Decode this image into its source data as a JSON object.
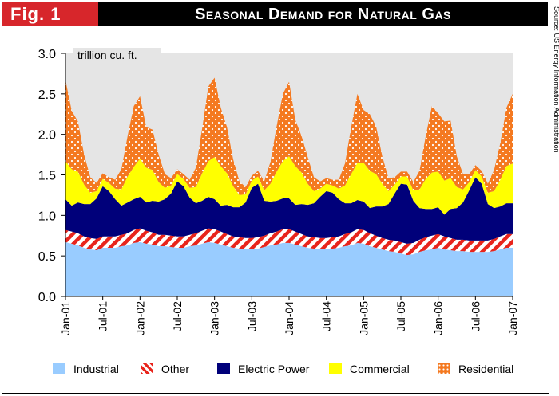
{
  "header": {
    "fig_label": "Fig. 1",
    "title": "Seasonal Demand for Natural Gas",
    "source": "Source: US Energy Information Administration"
  },
  "chart_data": {
    "type": "area",
    "stacked": true,
    "ylabel": "trillion cu. ft.",
    "ylim": [
      0,
      3.0
    ],
    "yticks": [
      "0.0",
      "0.5",
      "1.0",
      "1.5",
      "2.0",
      "2.5",
      "3.0"
    ],
    "xticks": [
      "Jan-01",
      "Jul-01",
      "Jan-02",
      "Jul-02",
      "Jan-03",
      "Jul-03",
      "Jan-04",
      "Jul-04",
      "Jan-05",
      "Jul-05",
      "Jan-06",
      "Jul-06",
      "Jan-07"
    ],
    "grid": false,
    "legend_position": "bottom",
    "series": [
      {
        "name": "Industrial",
        "color": "#99ccff",
        "pattern": "solid",
        "values": [
          0.67,
          0.65,
          0.63,
          0.6,
          0.58,
          0.57,
          0.6,
          0.6,
          0.6,
          0.62,
          0.63,
          0.66,
          0.67,
          0.65,
          0.64,
          0.62,
          0.62,
          0.61,
          0.6,
          0.6,
          0.62,
          0.63,
          0.65,
          0.67,
          0.66,
          0.64,
          0.62,
          0.6,
          0.59,
          0.58,
          0.58,
          0.59,
          0.61,
          0.63,
          0.64,
          0.66,
          0.66,
          0.64,
          0.62,
          0.6,
          0.59,
          0.58,
          0.58,
          0.59,
          0.6,
          0.62,
          0.63,
          0.66,
          0.65,
          0.62,
          0.6,
          0.58,
          0.56,
          0.55,
          0.53,
          0.51,
          0.52,
          0.55,
          0.57,
          0.58,
          0.6,
          0.58,
          0.57,
          0.56,
          0.56,
          0.55,
          0.55,
          0.55,
          0.55,
          0.56,
          0.58,
          0.6,
          0.6
        ]
      },
      {
        "name": "Other",
        "color": "#e8241c",
        "pattern": "stripes",
        "values": [
          0.15,
          0.15,
          0.15,
          0.14,
          0.14,
          0.14,
          0.14,
          0.14,
          0.14,
          0.14,
          0.15,
          0.16,
          0.17,
          0.16,
          0.15,
          0.14,
          0.14,
          0.14,
          0.14,
          0.14,
          0.14,
          0.15,
          0.16,
          0.17,
          0.17,
          0.16,
          0.15,
          0.14,
          0.14,
          0.14,
          0.14,
          0.14,
          0.14,
          0.15,
          0.16,
          0.17,
          0.17,
          0.16,
          0.15,
          0.14,
          0.14,
          0.14,
          0.14,
          0.14,
          0.14,
          0.15,
          0.16,
          0.17,
          0.17,
          0.16,
          0.15,
          0.14,
          0.14,
          0.14,
          0.14,
          0.14,
          0.14,
          0.15,
          0.16,
          0.17,
          0.17,
          0.16,
          0.15,
          0.14,
          0.14,
          0.14,
          0.14,
          0.14,
          0.14,
          0.15,
          0.16,
          0.17,
          0.17
        ]
      },
      {
        "name": "Electric Power",
        "color": "#00007a",
        "pattern": "solid",
        "values": [
          0.38,
          0.32,
          0.38,
          0.4,
          0.42,
          0.5,
          0.62,
          0.56,
          0.46,
          0.36,
          0.38,
          0.38,
          0.39,
          0.35,
          0.39,
          0.41,
          0.44,
          0.52,
          0.68,
          0.62,
          0.46,
          0.37,
          0.37,
          0.39,
          0.37,
          0.32,
          0.36,
          0.36,
          0.37,
          0.44,
          0.62,
          0.66,
          0.43,
          0.39,
          0.38,
          0.38,
          0.38,
          0.33,
          0.37,
          0.39,
          0.42,
          0.51,
          0.58,
          0.55,
          0.46,
          0.38,
          0.36,
          0.36,
          0.35,
          0.31,
          0.36,
          0.39,
          0.44,
          0.58,
          0.72,
          0.73,
          0.52,
          0.39,
          0.35,
          0.33,
          0.33,
          0.27,
          0.36,
          0.39,
          0.46,
          0.62,
          0.78,
          0.7,
          0.45,
          0.38,
          0.37,
          0.38,
          0.38
        ]
      },
      {
        "name": "Commercial",
        "color": "#ffff00",
        "pattern": "solid",
        "values": [
          0.47,
          0.45,
          0.38,
          0.24,
          0.14,
          0.09,
          0.09,
          0.1,
          0.13,
          0.2,
          0.32,
          0.4,
          0.47,
          0.43,
          0.38,
          0.24,
          0.14,
          0.1,
          0.09,
          0.09,
          0.12,
          0.2,
          0.34,
          0.44,
          0.52,
          0.49,
          0.39,
          0.26,
          0.15,
          0.1,
          0.09,
          0.09,
          0.13,
          0.22,
          0.36,
          0.46,
          0.52,
          0.48,
          0.39,
          0.26,
          0.15,
          0.1,
          0.09,
          0.09,
          0.13,
          0.22,
          0.36,
          0.46,
          0.48,
          0.46,
          0.4,
          0.28,
          0.16,
          0.11,
          0.09,
          0.1,
          0.13,
          0.23,
          0.37,
          0.45,
          0.44,
          0.42,
          0.38,
          0.26,
          0.16,
          0.1,
          0.09,
          0.09,
          0.14,
          0.21,
          0.33,
          0.46,
          0.49
        ]
      },
      {
        "name": "Residential",
        "color": "#f47920",
        "pattern": "dots",
        "values": [
          1.0,
          0.72,
          0.62,
          0.37,
          0.19,
          0.1,
          0.07,
          0.07,
          0.11,
          0.25,
          0.5,
          0.75,
          0.77,
          0.5,
          0.5,
          0.34,
          0.17,
          0.09,
          0.06,
          0.06,
          0.1,
          0.24,
          0.55,
          0.92,
          0.98,
          0.72,
          0.57,
          0.33,
          0.17,
          0.09,
          0.06,
          0.07,
          0.11,
          0.27,
          0.56,
          0.83,
          0.92,
          0.57,
          0.45,
          0.33,
          0.17,
          0.09,
          0.07,
          0.07,
          0.11,
          0.27,
          0.58,
          0.85,
          0.65,
          0.7,
          0.59,
          0.34,
          0.16,
          0.09,
          0.06,
          0.06,
          0.1,
          0.23,
          0.53,
          0.82,
          0.72,
          0.73,
          0.71,
          0.38,
          0.19,
          0.1,
          0.06,
          0.07,
          0.11,
          0.26,
          0.45,
          0.72,
          0.86
        ]
      }
    ]
  }
}
